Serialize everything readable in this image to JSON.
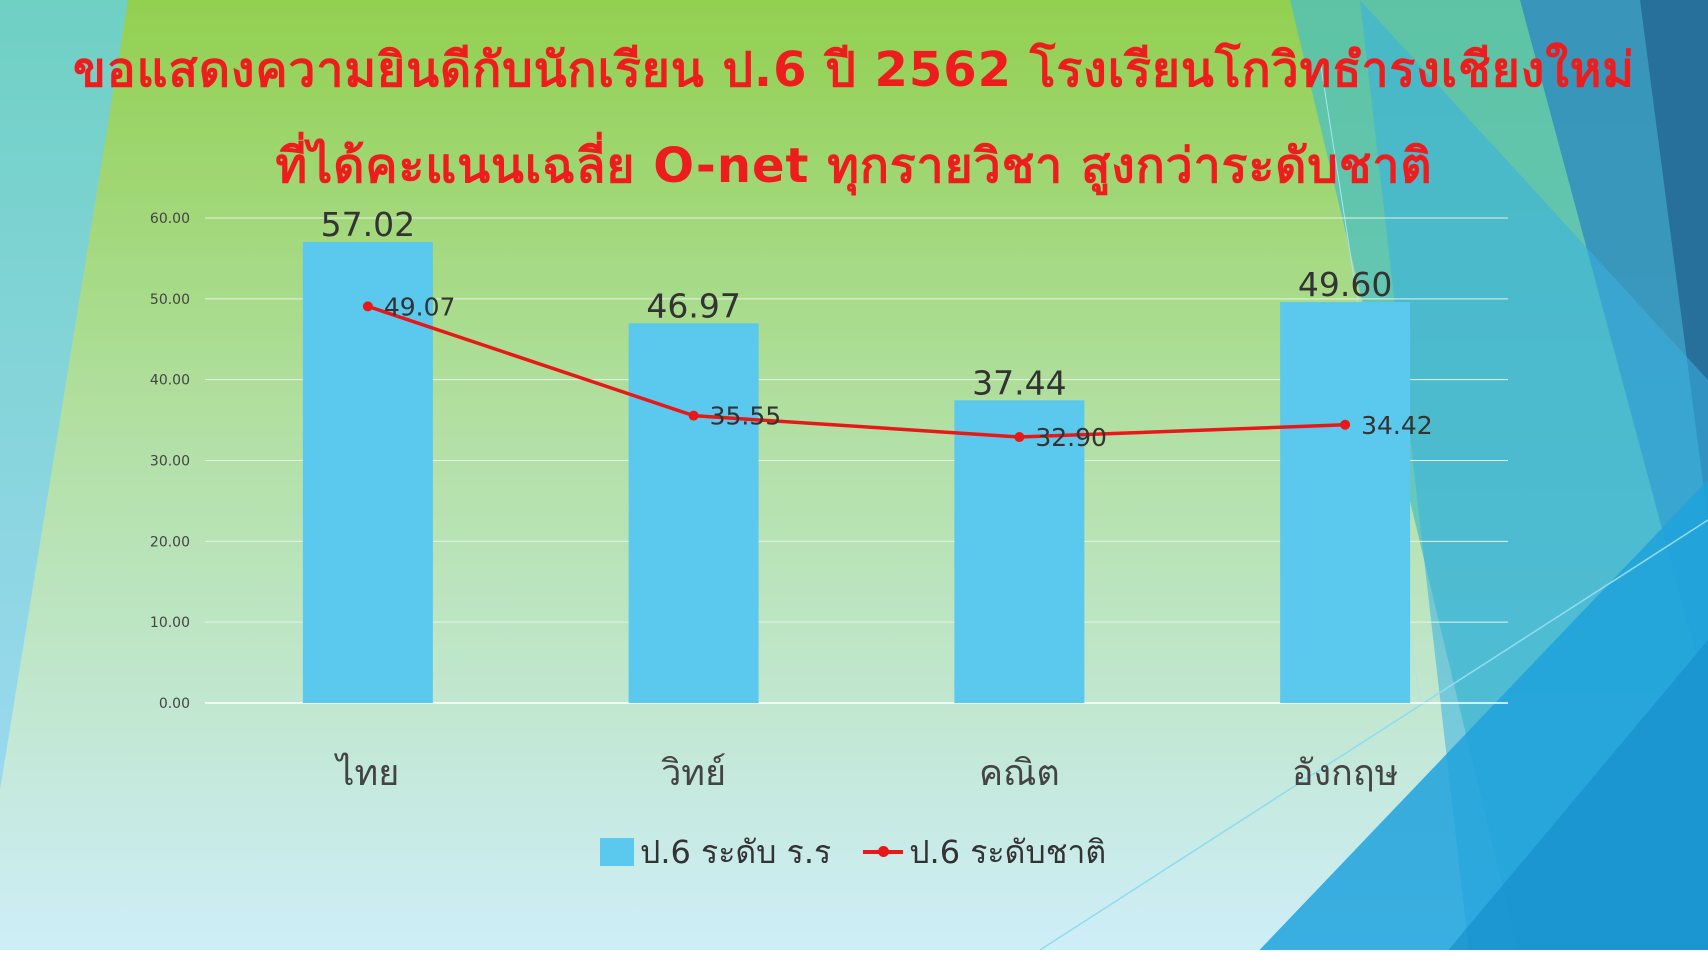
{
  "slide": {
    "title_line1": "ขอแสดงความยินดีกับนักเรียน ป.6 ปี 2562 โรงเรียนโกวิทธำรงเชียงใหม่",
    "title_line2": "ที่ได้คะแนนเฉลี่ย O-net ทุกรายวิชา สูงกว่าระดับชาติ",
    "title_color": "#ee1c1c"
  },
  "chart_data": {
    "type": "bar",
    "categories": [
      "ไทย",
      "วิทย์",
      "คณิต",
      "อังกฤษ"
    ],
    "series": [
      {
        "name": "ป.6 ระดับ ร.ร",
        "kind": "bar",
        "color": "#5bc8ee",
        "values": [
          57.02,
          46.97,
          37.44,
          49.6
        ],
        "labels": [
          "57.02",
          "46.97",
          "37.44",
          "49.60"
        ]
      },
      {
        "name": "ป.6 ระดับชาติ",
        "kind": "line",
        "color": "#e81818",
        "values": [
          49.07,
          35.55,
          32.9,
          34.42
        ],
        "labels": [
          "49.07",
          "35.55",
          "32.90",
          "34.42"
        ]
      }
    ],
    "ylim": [
      0,
      60
    ],
    "yticks": [
      "0.00",
      "10.00",
      "20.00",
      "30.00",
      "40.00",
      "50.00",
      "60.00"
    ],
    "grid": true,
    "legend_position": "bottom"
  }
}
